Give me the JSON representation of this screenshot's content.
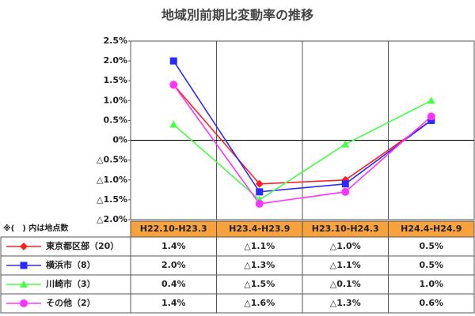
{
  "chart_data": {
    "type": "line",
    "title": "地域別前期比変動率の推移",
    "note": "※(　) 内は地点数",
    "categories": [
      "H22.10-H23.3",
      "H23.4-H23.9",
      "H23.10-H24.3",
      "H24.4-H24.9"
    ],
    "series": [
      {
        "name": "東京都区部（20）",
        "color": "#ff2020",
        "marker": "diamond",
        "values": [
          1.4,
          -1.1,
          -1.0,
          0.5
        ],
        "value_labels": [
          "1.4%",
          "△1.1%",
          "△1.0%",
          "0.5%"
        ]
      },
      {
        "name": "横浜市（8）",
        "color": "#2a2aff",
        "marker": "square",
        "values": [
          2.0,
          -1.3,
          -1.1,
          0.5
        ],
        "value_labels": [
          "2.0%",
          "△1.3%",
          "△1.1%",
          "0.5%"
        ]
      },
      {
        "name": "川崎市（3）",
        "color": "#44ff44",
        "marker": "triangle",
        "values": [
          0.4,
          -1.5,
          -0.1,
          1.0
        ],
        "value_labels": [
          "0.4%",
          "△1.5%",
          "△0.1%",
          "1.0%"
        ]
      },
      {
        "name": "その他（2）",
        "color": "#ff33ff",
        "marker": "circle",
        "values": [
          1.4,
          -1.6,
          -1.3,
          0.6
        ],
        "value_labels": [
          "1.4%",
          "△1.6%",
          "△1.3%",
          "0.6%"
        ]
      }
    ],
    "ylim": [
      -2.0,
      2.5
    ],
    "yticks": [
      {
        "value": 2.5,
        "label": "2.5%"
      },
      {
        "value": 2.0,
        "label": "2.0%"
      },
      {
        "value": 1.5,
        "label": "1.5%"
      },
      {
        "value": 1.0,
        "label": "1.0%"
      },
      {
        "value": 0.5,
        "label": "0.5%"
      },
      {
        "value": 0,
        "label": "0%"
      },
      {
        "value": -0.5,
        "label": "△0.5%"
      },
      {
        "value": -1.0,
        "label": "△1.0%"
      },
      {
        "value": -1.5,
        "label": "△1.5%"
      },
      {
        "value": -2.0,
        "label": "△2.0%"
      }
    ],
    "header_color": "#f7a23c"
  }
}
